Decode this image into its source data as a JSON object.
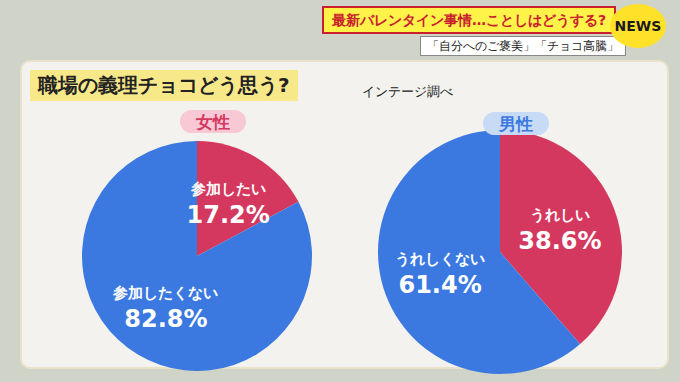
{
  "header": {
    "title": "最新バレンタイン事情…ことしはどうする?",
    "subtitle": "「自分へのご褒美」「チョコ高騰」",
    "badge": "NEWS"
  },
  "panel": {
    "title": "職場の義理チョコどう思う?",
    "source": "インテージ調べ"
  },
  "chart_data": [
    {
      "type": "pie",
      "title": "女性",
      "categories": [
        "参加したい",
        "参加したくない"
      ],
      "values": [
        17.2,
        82.8
      ],
      "value_labels": [
        "17.2%",
        "82.8%"
      ],
      "colors": [
        "#d5385f",
        "#3b79e0"
      ],
      "data_labels": true
    },
    {
      "type": "pie",
      "title": "男性",
      "categories": [
        "うれしい",
        "うれしくない"
      ],
      "values": [
        38.6,
        61.4
      ],
      "value_labels": [
        "38.6%",
        "61.4%"
      ],
      "colors": [
        "#d5385f",
        "#3b79e0"
      ],
      "data_labels": true
    }
  ]
}
